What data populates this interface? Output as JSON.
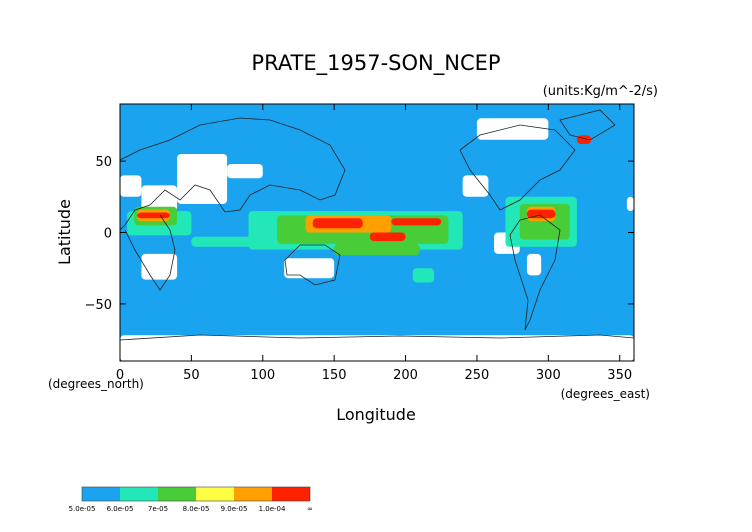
{
  "chart_data": {
    "type": "heatmap",
    "title": "PRATE_1957-SON_NCEP",
    "units": "(units:Kg/m^-2/s)",
    "xlabel": "Longitude",
    "ylabel": "Latitude",
    "x_unit_label": "(degrees_east)",
    "y_unit_label": "(degrees_north)",
    "xlim": [
      0,
      360
    ],
    "ylim": [
      -90,
      90
    ],
    "x_ticks": [
      0,
      50,
      100,
      150,
      200,
      250,
      300,
      350
    ],
    "y_ticks": [
      50,
      0,
      -50
    ],
    "x_tick_labels": [
      "0",
      "50",
      "100",
      "150",
      "200",
      "250",
      "300",
      "350"
    ],
    "y_tick_labels": [
      "50",
      "0",
      "−50"
    ],
    "colorbar": {
      "boundaries": [
        "5.0e-05",
        "6.0e-05",
        "7e-05",
        "8.0e-05",
        "9.0e-05",
        "1.0e-04",
        "∞"
      ],
      "colors": [
        "#1aa3ee",
        "#22e8b8",
        "#48cc38",
        "#ffff44",
        "#ffa000",
        "#ff2200"
      ]
    },
    "background_color": "#1aa3ee",
    "below_min_color": "#ffffff",
    "regions": [
      {
        "level": "below",
        "lon": [
          0,
          15
        ],
        "lat": [
          25,
          40
        ]
      },
      {
        "level": "below",
        "lon": [
          15,
          40
        ],
        "lat": [
          15,
          33
        ]
      },
      {
        "level": "below",
        "lon": [
          40,
          75
        ],
        "lat": [
          20,
          55
        ]
      },
      {
        "level": "below",
        "lon": [
          75,
          100
        ],
        "lat": [
          38,
          48
        ]
      },
      {
        "level": "below",
        "lon": [
          15,
          40
        ],
        "lat": [
          -33,
          -15
        ]
      },
      {
        "level": "below",
        "lon": [
          115,
          150
        ],
        "lat": [
          -32,
          -18
        ]
      },
      {
        "level": "below",
        "lon": [
          240,
          258
        ],
        "lat": [
          25,
          40
        ]
      },
      {
        "level": "below",
        "lon": [
          262,
          280
        ],
        "lat": [
          -15,
          0
        ]
      },
      {
        "level": "below",
        "lon": [
          285,
          295
        ],
        "lat": [
          -30,
          -15
        ]
      },
      {
        "level": "below",
        "lon": [
          250,
          300
        ],
        "lat": [
          65,
          80
        ]
      },
      {
        "level": "below",
        "lon": [
          0,
          360
        ],
        "lat": [
          -90,
          -72
        ]
      },
      {
        "level": "below",
        "lon": [
          355,
          360
        ],
        "lat": [
          15,
          25
        ]
      },
      {
        "level": "lt7",
        "lon": [
          5,
          50
        ],
        "lat": [
          -2,
          15
        ]
      },
      {
        "level": "lt7",
        "lon": [
          90,
          240
        ],
        "lat": [
          -12,
          15
        ]
      },
      {
        "level": "lt7",
        "lon": [
          270,
          320
        ],
        "lat": [
          -10,
          25
        ]
      },
      {
        "level": "lt7",
        "lon": [
          50,
          110
        ],
        "lat": [
          -10,
          -3
        ]
      },
      {
        "level": "lt7",
        "lon": [
          205,
          220
        ],
        "lat": [
          -35,
          -25
        ]
      },
      {
        "level": "lt8",
        "lon": [
          10,
          40
        ],
        "lat": [
          5,
          18
        ]
      },
      {
        "level": "lt8",
        "lon": [
          110,
          230
        ],
        "lat": [
          -8,
          12
        ]
      },
      {
        "level": "lt8",
        "lon": [
          280,
          315
        ],
        "lat": [
          -5,
          20
        ]
      },
      {
        "level": "lt8",
        "lon": [
          150,
          210
        ],
        "lat": [
          -16,
          -8
        ]
      },
      {
        "level": "lt1e4",
        "lon": [
          12,
          35
        ],
        "lat": [
          8,
          16
        ]
      },
      {
        "level": "lt1e4",
        "lon": [
          130,
          190
        ],
        "lat": [
          0,
          12
        ]
      },
      {
        "level": "lt1e4",
        "lon": [
          285,
          305
        ],
        "lat": [
          8,
          18
        ]
      },
      {
        "level": "ge1e4",
        "lon": [
          12,
          35
        ],
        "lat": [
          10,
          14
        ]
      },
      {
        "level": "ge1e4",
        "lon": [
          135,
          170
        ],
        "lat": [
          3,
          10
        ]
      },
      {
        "level": "ge1e4",
        "lon": [
          190,
          225
        ],
        "lat": [
          5,
          10
        ]
      },
      {
        "level": "ge1e4",
        "lon": [
          175,
          200
        ],
        "lat": [
          -6,
          0
        ]
      },
      {
        "level": "ge1e4",
        "lon": [
          285,
          305
        ],
        "lat": [
          10,
          16
        ]
      },
      {
        "level": "ge1e4",
        "lon": [
          320,
          330
        ],
        "lat": [
          62,
          68
        ]
      }
    ]
  }
}
